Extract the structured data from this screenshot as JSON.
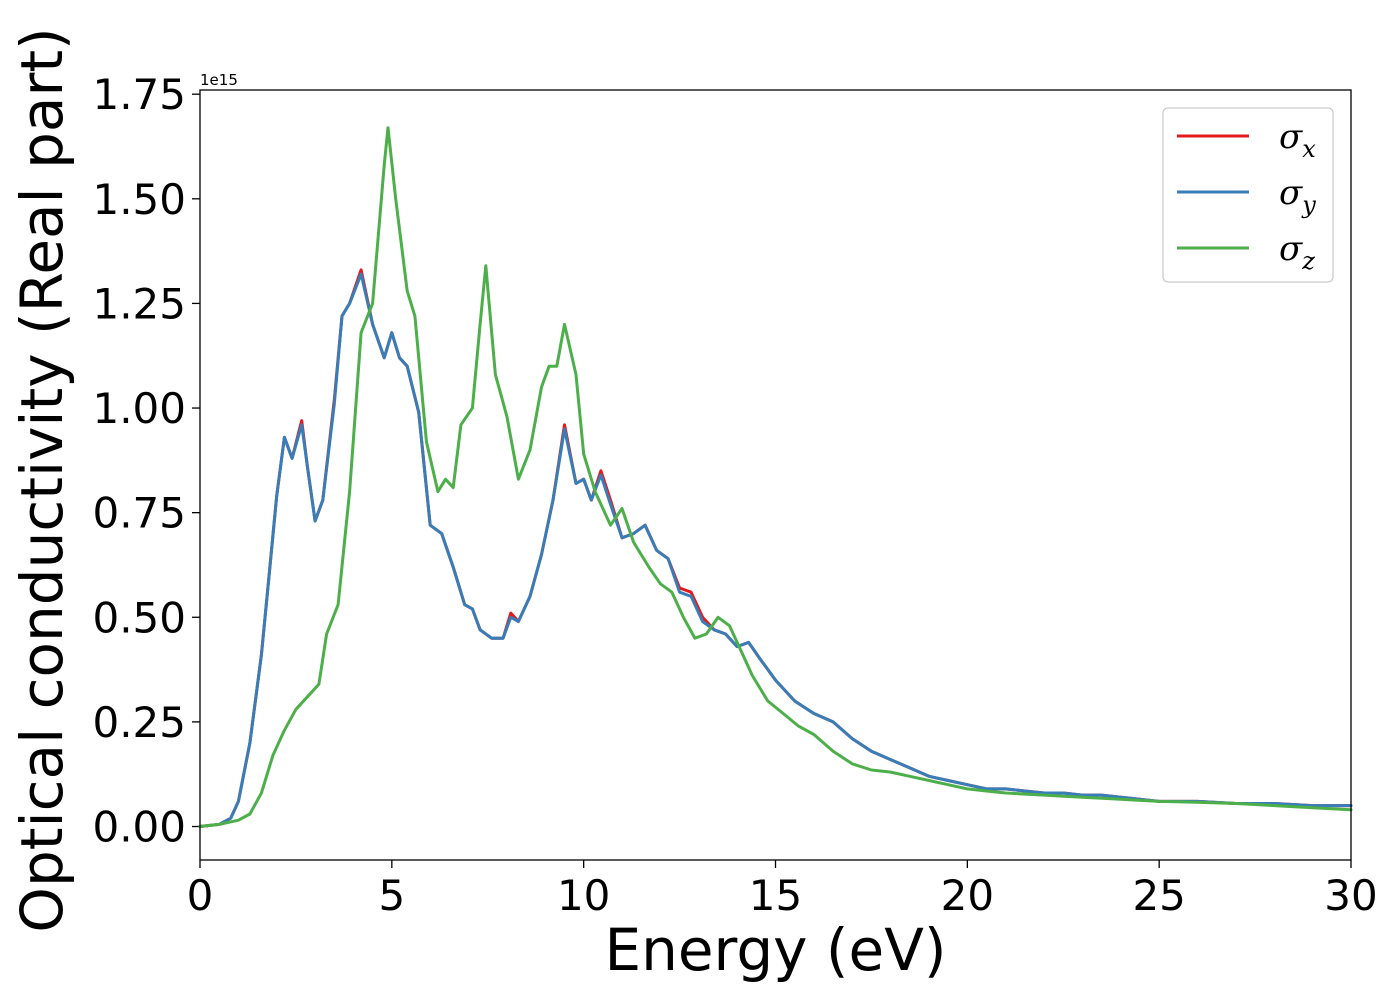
{
  "chart_data": {
    "type": "line",
    "title": "",
    "xlabel": "Energy (eV)",
    "ylabel": "Optical conductivity (Real part)",
    "y_offset_label": "1e15",
    "xlim": [
      0,
      30
    ],
    "ylim": [
      -0.08,
      1.76
    ],
    "xticks": [
      0,
      5,
      10,
      15,
      20,
      25,
      30
    ],
    "xtick_labels": [
      "0",
      "5",
      "10",
      "15",
      "20",
      "25",
      "30"
    ],
    "yticks": [
      0.0,
      0.25,
      0.5,
      0.75,
      1.0,
      1.25,
      1.5,
      1.75
    ],
    "ytick_labels": [
      "0.00",
      "0.25",
      "0.50",
      "0.75",
      "1.00",
      "1.25",
      "1.50",
      "1.75"
    ],
    "legend_position": "top-right",
    "series": [
      {
        "name": "σx",
        "base": "σ",
        "sub": "x",
        "color": "#e41a1c",
        "x": [
          0,
          0.5,
          0.8,
          1.0,
          1.3,
          1.6,
          1.8,
          2.0,
          2.2,
          2.4,
          2.65,
          2.8,
          3.0,
          3.2,
          3.5,
          3.7,
          3.9,
          4.2,
          4.5,
          4.8,
          5.0,
          5.2,
          5.4,
          5.7,
          6.0,
          6.3,
          6.6,
          6.9,
          7.1,
          7.3,
          7.6,
          7.9,
          8.1,
          8.3,
          8.6,
          8.9,
          9.2,
          9.5,
          9.8,
          10.0,
          10.2,
          10.45,
          10.7,
          11.0,
          11.3,
          11.6,
          11.9,
          12.2,
          12.5,
          12.8,
          13.1,
          13.4,
          13.7,
          14.0,
          14.3,
          14.6,
          15.0,
          15.5,
          16.0,
          16.5,
          17.0,
          17.5,
          18.0,
          18.5,
          19.0,
          19.5,
          20.0,
          20.5,
          21.0,
          21.5,
          22.0,
          22.5,
          23.0,
          23.5,
          24.0,
          24.5,
          25.0,
          26.0,
          27.0,
          28.0,
          29.0,
          30.0
        ],
        "y": [
          0,
          0.005,
          0.02,
          0.06,
          0.2,
          0.41,
          0.6,
          0.79,
          0.93,
          0.88,
          0.97,
          0.86,
          0.73,
          0.78,
          1.02,
          1.22,
          1.25,
          1.33,
          1.2,
          1.12,
          1.18,
          1.12,
          1.1,
          0.99,
          0.72,
          0.7,
          0.62,
          0.53,
          0.52,
          0.47,
          0.45,
          0.45,
          0.51,
          0.49,
          0.55,
          0.65,
          0.78,
          0.96,
          0.82,
          0.83,
          0.78,
          0.85,
          0.78,
          0.69,
          0.7,
          0.72,
          0.66,
          0.64,
          0.57,
          0.56,
          0.5,
          0.47,
          0.46,
          0.43,
          0.44,
          0.4,
          0.35,
          0.3,
          0.27,
          0.25,
          0.21,
          0.18,
          0.16,
          0.14,
          0.12,
          0.11,
          0.1,
          0.09,
          0.09,
          0.085,
          0.08,
          0.08,
          0.075,
          0.075,
          0.07,
          0.065,
          0.06,
          0.06,
          0.055,
          0.055,
          0.05,
          0.05
        ]
      },
      {
        "name": "σy",
        "base": "σ",
        "sub": "y",
        "color": "#377eb8",
        "x": [
          0,
          0.5,
          0.8,
          1.0,
          1.3,
          1.6,
          1.8,
          2.0,
          2.2,
          2.4,
          2.65,
          2.8,
          3.0,
          3.2,
          3.5,
          3.7,
          3.9,
          4.2,
          4.5,
          4.8,
          5.0,
          5.2,
          5.4,
          5.7,
          6.0,
          6.3,
          6.6,
          6.9,
          7.1,
          7.3,
          7.6,
          7.9,
          8.1,
          8.3,
          8.6,
          8.9,
          9.2,
          9.5,
          9.8,
          10.0,
          10.2,
          10.45,
          10.7,
          11.0,
          11.3,
          11.6,
          11.9,
          12.2,
          12.5,
          12.8,
          13.1,
          13.4,
          13.7,
          14.0,
          14.3,
          14.6,
          15.0,
          15.5,
          16.0,
          16.5,
          17.0,
          17.5,
          18.0,
          18.5,
          19.0,
          19.5,
          20.0,
          20.5,
          21.0,
          21.5,
          22.0,
          22.5,
          23.0,
          23.5,
          24.0,
          24.5,
          25.0,
          26.0,
          27.0,
          28.0,
          29.0,
          30.0
        ],
        "y": [
          0,
          0.005,
          0.02,
          0.06,
          0.2,
          0.41,
          0.6,
          0.79,
          0.93,
          0.88,
          0.96,
          0.86,
          0.73,
          0.78,
          1.01,
          1.22,
          1.25,
          1.32,
          1.2,
          1.12,
          1.18,
          1.12,
          1.1,
          0.99,
          0.72,
          0.7,
          0.62,
          0.53,
          0.52,
          0.47,
          0.45,
          0.45,
          0.5,
          0.49,
          0.55,
          0.65,
          0.78,
          0.95,
          0.82,
          0.83,
          0.78,
          0.84,
          0.77,
          0.69,
          0.7,
          0.72,
          0.66,
          0.64,
          0.56,
          0.55,
          0.49,
          0.47,
          0.46,
          0.43,
          0.44,
          0.4,
          0.35,
          0.3,
          0.27,
          0.25,
          0.21,
          0.18,
          0.16,
          0.14,
          0.12,
          0.11,
          0.1,
          0.09,
          0.09,
          0.085,
          0.08,
          0.08,
          0.075,
          0.075,
          0.07,
          0.065,
          0.06,
          0.06,
          0.055,
          0.055,
          0.05,
          0.05
        ]
      },
      {
        "name": "σz",
        "base": "σ",
        "sub": "z",
        "color": "#4daf4a",
        "x": [
          0,
          0.5,
          1.0,
          1.3,
          1.6,
          1.9,
          2.2,
          2.5,
          2.8,
          3.1,
          3.3,
          3.6,
          3.9,
          4.2,
          4.5,
          4.8,
          4.9,
          5.1,
          5.4,
          5.6,
          5.9,
          6.2,
          6.4,
          6.6,
          6.8,
          7.1,
          7.3,
          7.45,
          7.7,
          8.0,
          8.3,
          8.6,
          8.9,
          9.1,
          9.3,
          9.5,
          9.8,
          10.0,
          10.3,
          10.7,
          11.0,
          11.3,
          11.7,
          12.0,
          12.3,
          12.6,
          12.9,
          13.2,
          13.5,
          13.8,
          14.1,
          14.4,
          14.8,
          15.2,
          15.6,
          16.0,
          16.5,
          17.0,
          17.5,
          18.0,
          18.5,
          19.0,
          19.5,
          20.0,
          20.5,
          21.0,
          22.0,
          23.0,
          24.0,
          25.0,
          26.0,
          27.0,
          28.0,
          29.0,
          30.0
        ],
        "y": [
          0,
          0.005,
          0.015,
          0.03,
          0.08,
          0.17,
          0.23,
          0.28,
          0.31,
          0.34,
          0.46,
          0.53,
          0.8,
          1.18,
          1.25,
          1.58,
          1.67,
          1.5,
          1.28,
          1.22,
          0.92,
          0.8,
          0.83,
          0.81,
          0.96,
          1.0,
          1.2,
          1.34,
          1.08,
          0.98,
          0.83,
          0.9,
          1.05,
          1.1,
          1.1,
          1.2,
          1.08,
          0.89,
          0.8,
          0.72,
          0.76,
          0.68,
          0.62,
          0.58,
          0.56,
          0.5,
          0.45,
          0.46,
          0.5,
          0.48,
          0.42,
          0.36,
          0.3,
          0.27,
          0.24,
          0.22,
          0.18,
          0.15,
          0.135,
          0.13,
          0.12,
          0.11,
          0.1,
          0.09,
          0.085,
          0.08,
          0.075,
          0.07,
          0.065,
          0.06,
          0.058,
          0.055,
          0.05,
          0.045,
          0.04
        ]
      }
    ]
  }
}
